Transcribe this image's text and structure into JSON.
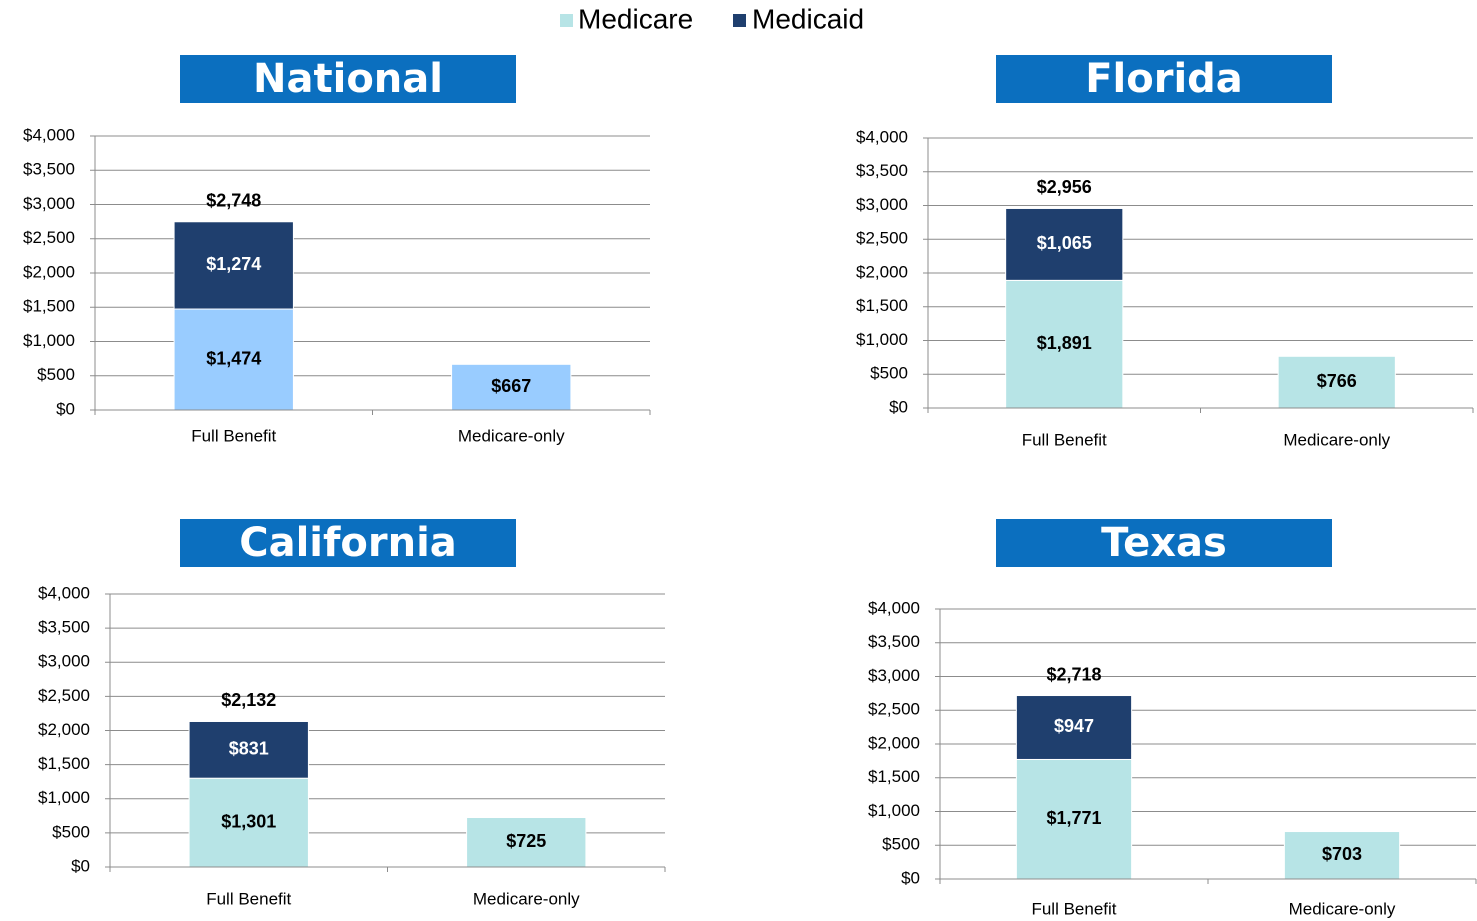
{
  "legend": [
    {
      "name": "Medicare",
      "color": "#b7e4e6"
    },
    {
      "name": "Medicaid",
      "color": "#1f3f6e"
    }
  ],
  "chart_data": [
    {
      "type": "bar",
      "stacked": true,
      "title": "National",
      "categories": [
        "Full Benefit",
        "Medicare-only"
      ],
      "series": [
        {
          "color": "#99ccff",
          "values": [
            1474,
            667
          ],
          "value_labels": [
            "$1,474",
            "$667"
          ]
        },
        {
          "color": "#1f3f6e",
          "values": [
            1274,
            null
          ],
          "value_labels": [
            "$1,274",
            null
          ]
        }
      ],
      "totals": [
        2748,
        null
      ],
      "total_labels": [
        "$2,748",
        null
      ],
      "ylim": [
        0,
        4000
      ],
      "grid": true,
      "yticks": [
        {
          "value": 0,
          "label": "$0"
        },
        {
          "value": 500,
          "label": "$500"
        },
        {
          "value": 1000,
          "label": "$1,000"
        },
        {
          "value": 1500,
          "label": "$1,500"
        },
        {
          "value": 2000,
          "label": "$2,000"
        },
        {
          "value": 2500,
          "label": "$2,500"
        },
        {
          "value": 3000,
          "label": "$3,000"
        },
        {
          "value": 3500,
          "label": "$3,500"
        },
        {
          "value": 4000,
          "label": "$4,000"
        }
      ]
    },
    {
      "type": "bar",
      "stacked": true,
      "title": "Florida",
      "categories": [
        "Full Benefit",
        "Medicare-only"
      ],
      "series": [
        {
          "color": "#b7e4e6",
          "values": [
            1891,
            766
          ],
          "value_labels": [
            "$1,891",
            "$766"
          ]
        },
        {
          "color": "#1f3f6e",
          "values": [
            1065,
            null
          ],
          "value_labels": [
            "$1,065",
            null
          ]
        }
      ],
      "totals": [
        2956,
        null
      ],
      "total_labels": [
        "$2,956",
        null
      ],
      "ylim": [
        0,
        4000
      ],
      "grid": true,
      "yticks": [
        {
          "value": 0,
          "label": "$0"
        },
        {
          "value": 500,
          "label": "$500"
        },
        {
          "value": 1000,
          "label": "$1,000"
        },
        {
          "value": 1500,
          "label": "$1,500"
        },
        {
          "value": 2000,
          "label": "$2,000"
        },
        {
          "value": 2500,
          "label": "$2,500"
        },
        {
          "value": 3000,
          "label": "$3,000"
        },
        {
          "value": 3500,
          "label": "$3,500"
        },
        {
          "value": 4000,
          "label": "$4,000"
        }
      ]
    },
    {
      "type": "bar",
      "stacked": true,
      "title": "California",
      "categories": [
        "Full Benefit",
        "Medicare-only"
      ],
      "series": [
        {
          "color": "#b7e4e6",
          "values": [
            1301,
            725
          ],
          "value_labels": [
            "$1,301",
            "$725"
          ]
        },
        {
          "color": "#1f3f6e",
          "values": [
            831,
            null
          ],
          "value_labels": [
            "$831",
            null
          ]
        }
      ],
      "totals": [
        2132,
        null
      ],
      "total_labels": [
        "$2,132",
        null
      ],
      "ylim": [
        0,
        4000
      ],
      "grid": true,
      "yticks": [
        {
          "value": 0,
          "label": "$0"
        },
        {
          "value": 500,
          "label": "$500"
        },
        {
          "value": 1000,
          "label": "$1,000"
        },
        {
          "value": 1500,
          "label": "$1,500"
        },
        {
          "value": 2000,
          "label": "$2,000"
        },
        {
          "value": 2500,
          "label": "$2,500"
        },
        {
          "value": 3000,
          "label": "$3,000"
        },
        {
          "value": 3500,
          "label": "$3,500"
        },
        {
          "value": 4000,
          "label": "$4,000"
        }
      ]
    },
    {
      "type": "bar",
      "stacked": true,
      "title": "Texas",
      "categories": [
        "Full Benefit",
        "Medicare-only"
      ],
      "series": [
        {
          "color": "#b7e4e6",
          "values": [
            1771,
            703
          ],
          "value_labels": [
            "$1,771",
            "$703"
          ]
        },
        {
          "color": "#1f3f6e",
          "values": [
            947,
            null
          ],
          "value_labels": [
            "$947",
            null
          ]
        }
      ],
      "totals": [
        2718,
        null
      ],
      "total_labels": [
        "$2,718",
        null
      ],
      "ylim": [
        0,
        4000
      ],
      "grid": true,
      "yticks": [
        {
          "value": 0,
          "label": "$0"
        },
        {
          "value": 500,
          "label": "$500"
        },
        {
          "value": 1000,
          "label": "$1,000"
        },
        {
          "value": 1500,
          "label": "$1,500"
        },
        {
          "value": 2000,
          "label": "$2,000"
        },
        {
          "value": 2500,
          "label": "$2,500"
        },
        {
          "value": 3000,
          "label": "$3,000"
        },
        {
          "value": 3500,
          "label": "$3,500"
        },
        {
          "value": 4000,
          "label": "$4,000"
        }
      ]
    }
  ]
}
